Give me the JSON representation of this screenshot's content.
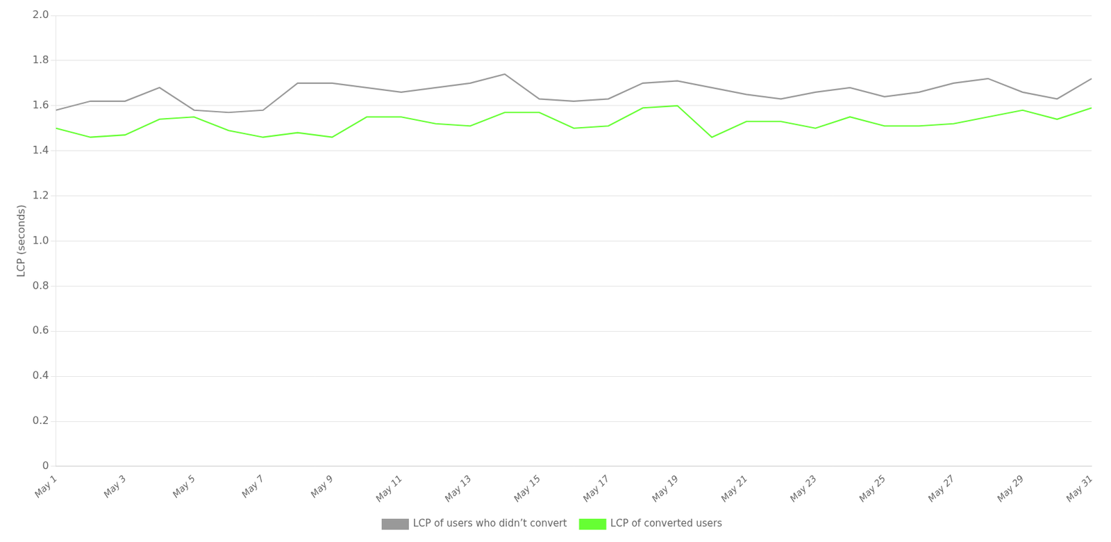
{
  "chart_data": {
    "type": "line",
    "categories": [
      "May 1",
      null,
      "May 3",
      null,
      "May 5",
      null,
      "May 7",
      null,
      "May 9",
      null,
      "May 11",
      null,
      "May 13",
      null,
      "May 15",
      null,
      "May 17",
      null,
      "May 19",
      null,
      "May 21",
      null,
      "May 23",
      null,
      "May 25",
      null,
      "May 27",
      null,
      "May 29",
      null,
      "May 31"
    ],
    "series": [
      {
        "name": "LCP of users who didn’t convert",
        "color": "#999999",
        "values": [
          1.58,
          1.62,
          1.62,
          1.68,
          1.58,
          1.57,
          1.58,
          1.7,
          1.7,
          1.68,
          1.66,
          1.68,
          1.7,
          1.74,
          1.63,
          1.62,
          1.63,
          1.7,
          1.71,
          1.68,
          1.65,
          1.63,
          1.66,
          1.68,
          1.64,
          1.66,
          1.7,
          1.72,
          1.66,
          1.63,
          1.72
        ]
      },
      {
        "name": "LCP of converted users",
        "color": "#66ff33",
        "values": [
          1.5,
          1.46,
          1.47,
          1.54,
          1.55,
          1.49,
          1.46,
          1.48,
          1.46,
          1.55,
          1.55,
          1.52,
          1.51,
          1.57,
          1.57,
          1.5,
          1.51,
          1.59,
          1.6,
          1.46,
          1.53,
          1.53,
          1.5,
          1.55,
          1.51,
          1.51,
          1.52,
          1.55,
          1.58,
          1.54,
          1.59
        ]
      }
    ],
    "y_label": "LCP (seconds)",
    "ylim": [
      0,
      2.0
    ],
    "yticks": [
      0,
      0.2,
      0.4,
      0.6,
      {
        "value": 1.0,
        "label": "1.0"
      },
      0.8,
      1.2,
      1.4,
      1.6,
      1.8,
      {
        "value": 2.0,
        "label": "2.0"
      }
    ],
    "grid": "y",
    "legend": "bottom"
  }
}
